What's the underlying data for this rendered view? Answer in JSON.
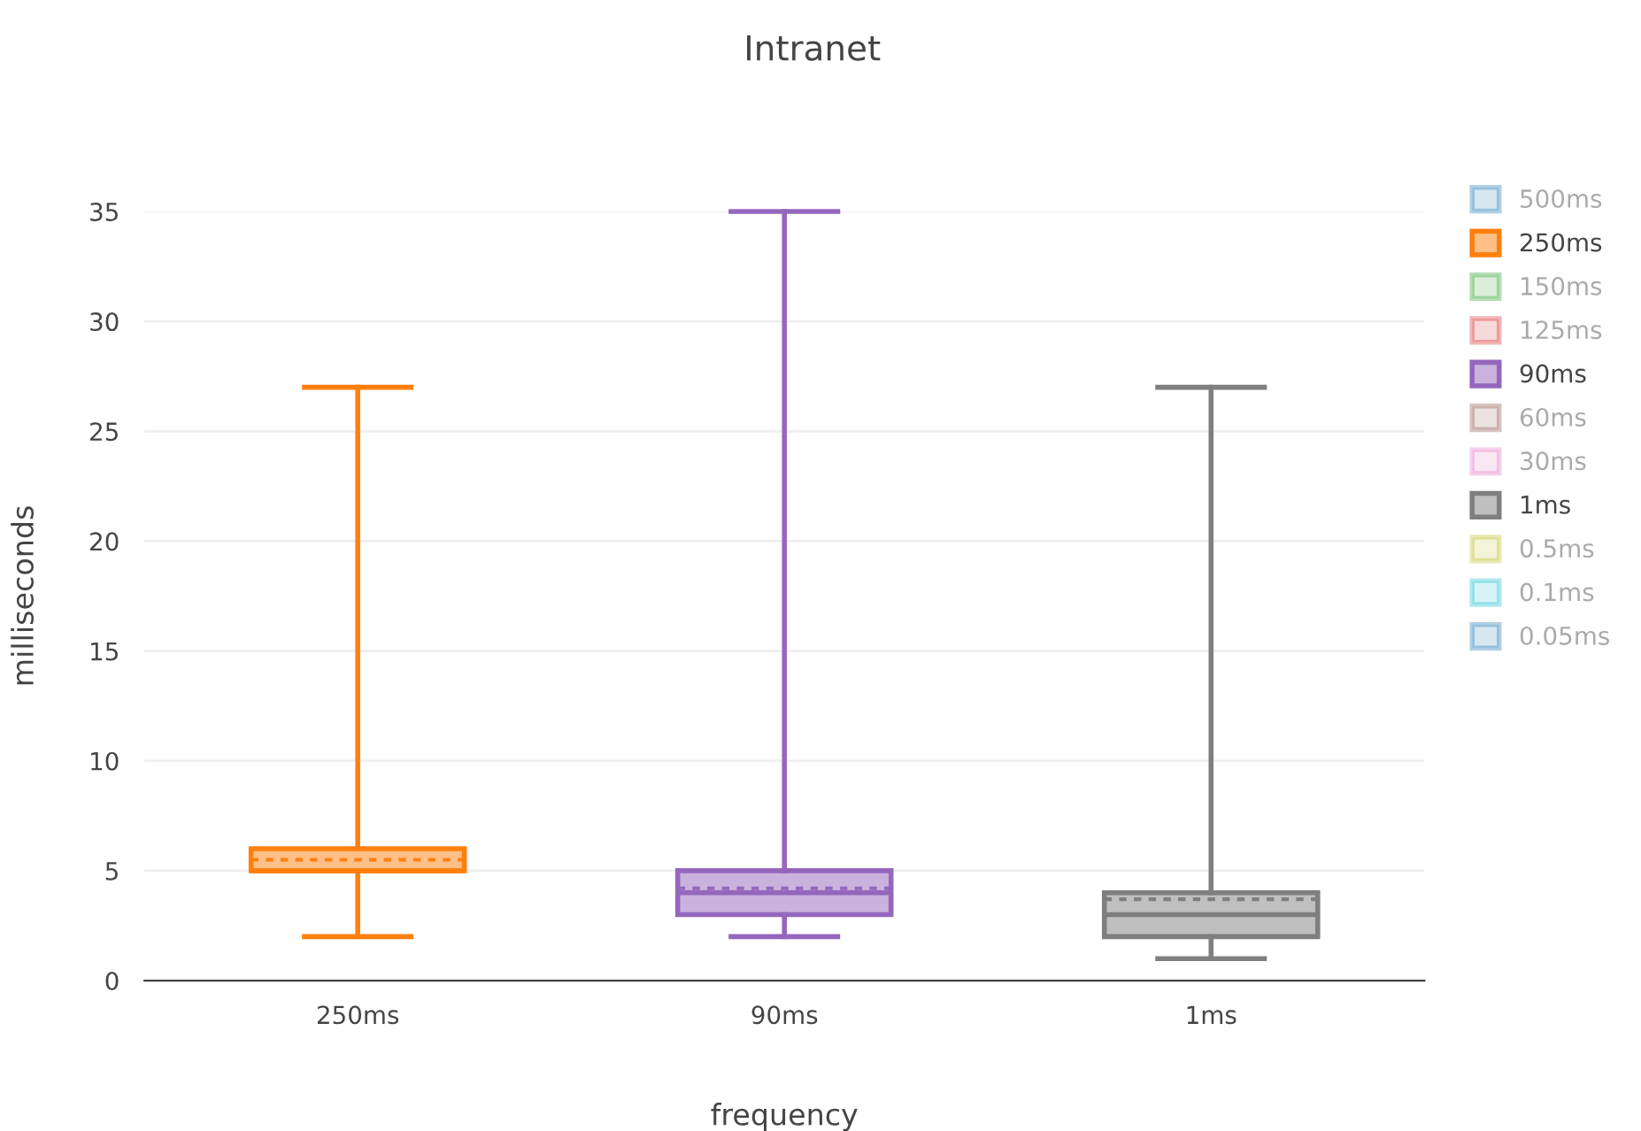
{
  "chart_data": {
    "type": "box",
    "title": "Intranet",
    "xlabel": "frequency",
    "ylabel": "milliseconds",
    "categories": [
      "250ms",
      "90ms",
      "1ms"
    ],
    "ylim": [
      0,
      35
    ],
    "yticks": [
      0,
      5,
      10,
      15,
      20,
      25,
      30,
      35
    ],
    "grid": "y",
    "legend": "right",
    "series": [
      {
        "name": "500ms",
        "color": "#1f77b4",
        "boxes": [
          null,
          null,
          null
        ]
      },
      {
        "name": "250ms",
        "color": "#ff7f0e",
        "boxes": [
          {
            "low": 2,
            "q1": 5,
            "median": 5,
            "q3": 6,
            "high": 27,
            "mean": 5.5
          },
          null,
          null
        ]
      },
      {
        "name": "150ms",
        "color": "#2ca02c",
        "boxes": [
          null,
          null,
          null
        ]
      },
      {
        "name": "125ms",
        "color": "#d62728",
        "boxes": [
          null,
          null,
          null
        ]
      },
      {
        "name": "90ms",
        "color": "#9467bd",
        "boxes": [
          null,
          {
            "low": 2,
            "q1": 3,
            "median": 4,
            "q3": 5,
            "high": 35,
            "mean": 4.2
          },
          null
        ]
      },
      {
        "name": "60ms",
        "color": "#8c564b",
        "boxes": [
          null,
          null,
          null
        ]
      },
      {
        "name": "30ms",
        "color": "#e377c2",
        "boxes": [
          null,
          null,
          null
        ]
      },
      {
        "name": "1ms",
        "color": "#7f7f7f",
        "boxes": [
          null,
          null,
          {
            "low": 1,
            "q1": 2,
            "median": 3,
            "q3": 4,
            "high": 27,
            "mean": 3.7
          }
        ]
      },
      {
        "name": "0.5ms",
        "color": "#bcbd22",
        "boxes": [
          null,
          null,
          null
        ]
      },
      {
        "name": "0.1ms",
        "color": "#17becf",
        "boxes": [
          null,
          null,
          null
        ]
      },
      {
        "name": "0.05ms",
        "color": "#1f77b4",
        "boxes": [
          null,
          null,
          null
        ]
      }
    ]
  }
}
